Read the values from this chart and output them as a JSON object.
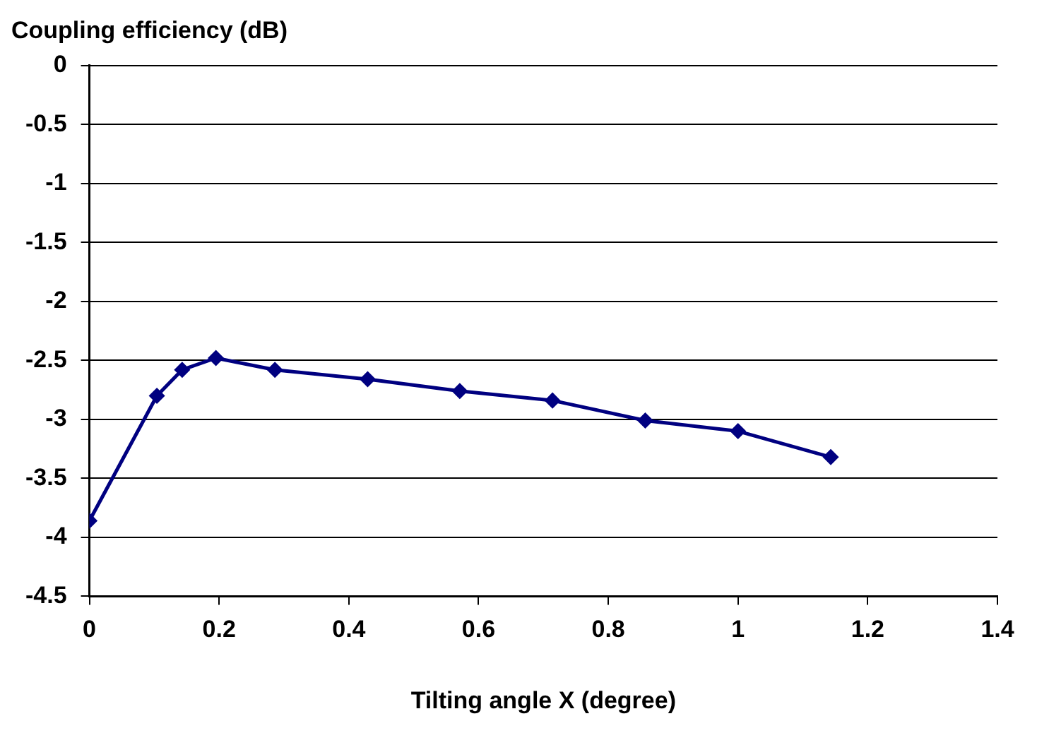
{
  "chart_data": {
    "type": "line",
    "ylabel": "Coupling efficiency (dB)",
    "xlabel": "Tilting angle X (degree)",
    "x": [
      0,
      0.104,
      0.143,
      0.195,
      0.286,
      0.429,
      0.571,
      0.714,
      0.857,
      1.0,
      1.143
    ],
    "series": [
      {
        "color": "#000080",
        "values": [
          -3.86,
          -2.8,
          -2.58,
          -2.48,
          -2.58,
          -2.66,
          -2.76,
          -2.84,
          -3.01,
          -3.1,
          -3.32
        ]
      }
    ],
    "xlim": [
      0,
      1.4
    ],
    "xticks": [
      0,
      0.2,
      0.4,
      0.6,
      0.8,
      1,
      1.2,
      1.4
    ],
    "ylim": [
      -4.5,
      0
    ],
    "yticks": [
      -4.5,
      -4,
      -3.5,
      -3,
      -2.5,
      -2,
      -1.5,
      -1,
      -0.5,
      0
    ],
    "grid": "y",
    "legend": false,
    "marker": "diamond",
    "line_style": "solid"
  }
}
